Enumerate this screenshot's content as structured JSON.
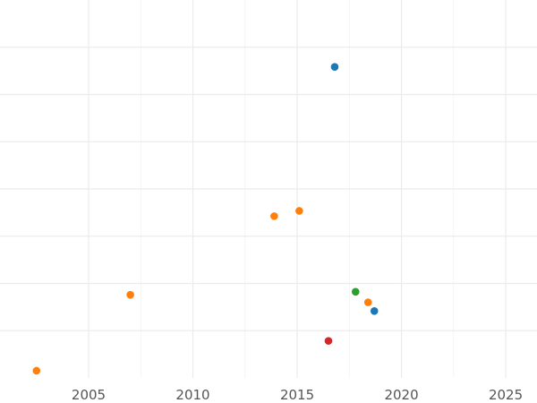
{
  "chart_data": {
    "type": "scatter",
    "title": "",
    "xlabel": "",
    "ylabel": "",
    "xlim": [
      2000.75,
      2026.5
    ],
    "ylim": [
      0,
      1
    ],
    "grid": true,
    "legend": "none",
    "x_ticks": [
      2005,
      2010,
      2015,
      2020,
      2025
    ],
    "x_tick_labels": [
      "2005",
      "2010",
      "2015",
      "2020",
      "2025"
    ],
    "y_ticks": [
      0.125,
      0.25,
      0.375,
      0.5,
      0.625,
      0.75,
      0.875
    ],
    "y_ticks_labeled": false,
    "series": [
      {
        "color": "#1f77b4",
        "points": [
          {
            "x": 2016.8,
            "y": 0.823
          },
          {
            "x": 2018.7,
            "y": 0.177
          }
        ]
      },
      {
        "color": "#ff7f0e",
        "points": [
          {
            "x": 2002.5,
            "y": 0.019
          },
          {
            "x": 2007.0,
            "y": 0.22
          },
          {
            "x": 2013.9,
            "y": 0.428
          },
          {
            "x": 2015.1,
            "y": 0.442
          },
          {
            "x": 2018.4,
            "y": 0.2
          }
        ]
      },
      {
        "color": "#2ca02c",
        "points": [
          {
            "x": 2017.8,
            "y": 0.228
          }
        ]
      },
      {
        "color": "#d62728",
        "points": [
          {
            "x": 2016.5,
            "y": 0.098
          }
        ]
      }
    ]
  }
}
